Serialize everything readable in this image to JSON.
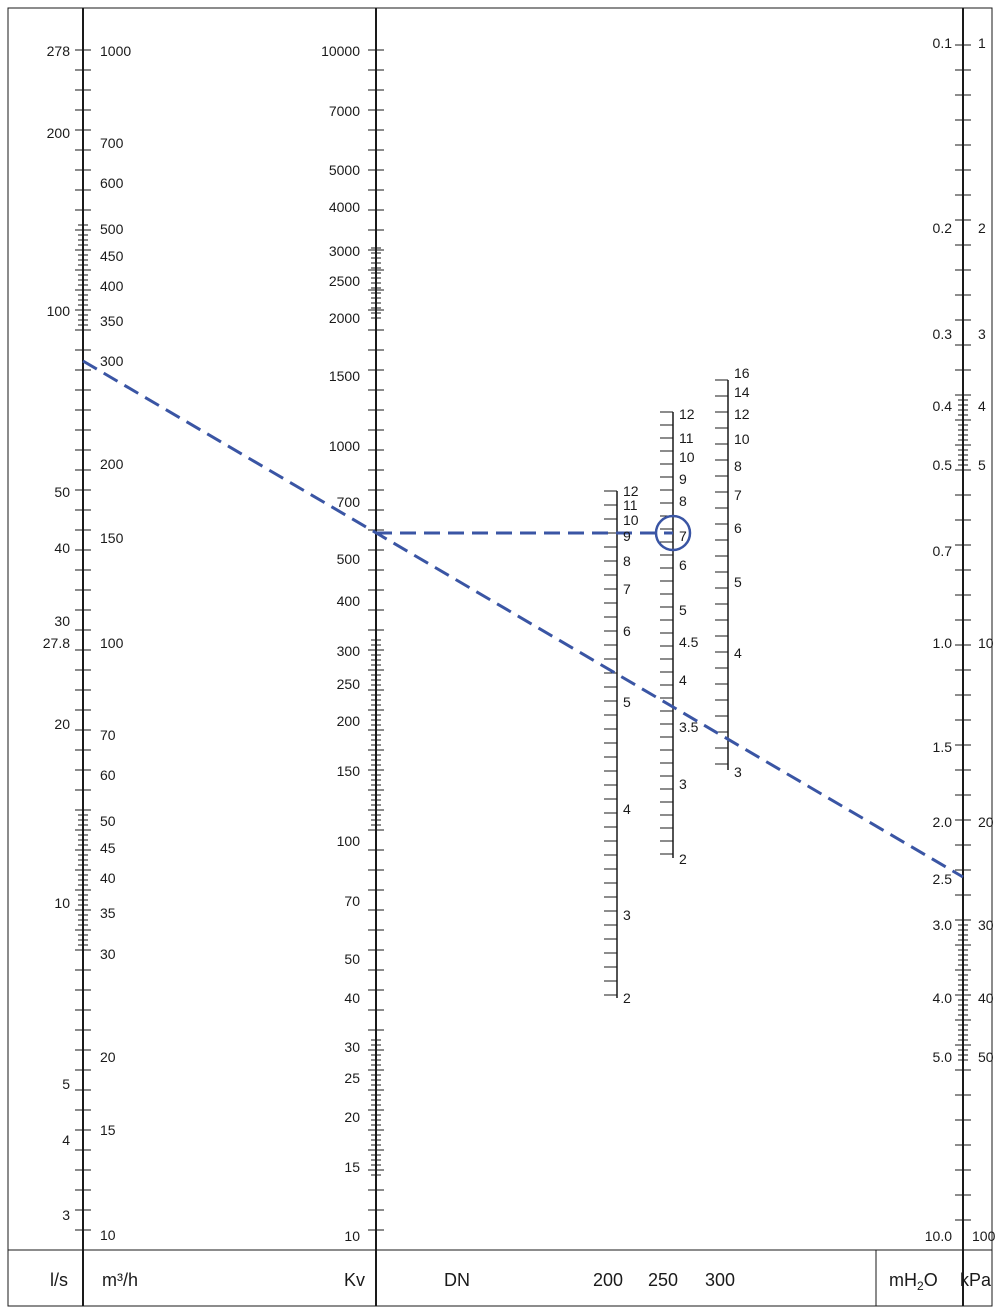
{
  "footer": {
    "ls": "l/s",
    "m3h": "m³/h",
    "kv": "Kv",
    "dn": "DN",
    "dn200": "200",
    "dn250": "250",
    "dn300": "300",
    "mh2o_main": "mH",
    "mh2o_sub": "2",
    "mh2o_end": "O",
    "kpa": "kPa"
  },
  "scales": {
    "ls": [
      "278",
      "200",
      "100",
      "50",
      "40",
      "30",
      "27.8",
      "20",
      "10",
      "5",
      "4",
      "3"
    ],
    "m3h": [
      "1000",
      "700",
      "600",
      "500",
      "450",
      "400",
      "350",
      "300",
      "200",
      "150",
      "100",
      "70",
      "60",
      "50",
      "45",
      "40",
      "35",
      "30",
      "20",
      "15",
      "10"
    ],
    "kv": [
      "10000",
      "7000",
      "5000",
      "4000",
      "3000",
      "2500",
      "2000",
      "1500",
      "1000",
      "700",
      "500",
      "400",
      "300",
      "250",
      "200",
      "150",
      "100",
      "70",
      "50",
      "40",
      "30",
      "25",
      "20",
      "15",
      "10"
    ],
    "dn200": [
      "12",
      "11",
      "10",
      "9",
      "8",
      "7",
      "6",
      "5",
      "4",
      "3",
      "2"
    ],
    "dn250": [
      "12",
      "11",
      "10",
      "9",
      "8",
      "7",
      "6",
      "5",
      "4.5",
      "4",
      "3.5",
      "3",
      "2"
    ],
    "dn300": [
      "16",
      "14",
      "12",
      "10",
      "8",
      "7",
      "6",
      "5",
      "4",
      "3"
    ],
    "mh2o": [
      "0.1",
      "0.2",
      "0.3",
      "0.4",
      "0.5",
      "0.7",
      "1.0",
      "1.5",
      "2.0",
      "2.5",
      "3.0",
      "4.0",
      "5.0",
      "10.0"
    ],
    "kpa": [
      "1",
      "2",
      "3",
      "4",
      "5",
      "10",
      "20",
      "30",
      "40",
      "50",
      "100"
    ]
  },
  "colors": {
    "line": "#3a55a4",
    "ink": "#1a1a1a"
  }
}
